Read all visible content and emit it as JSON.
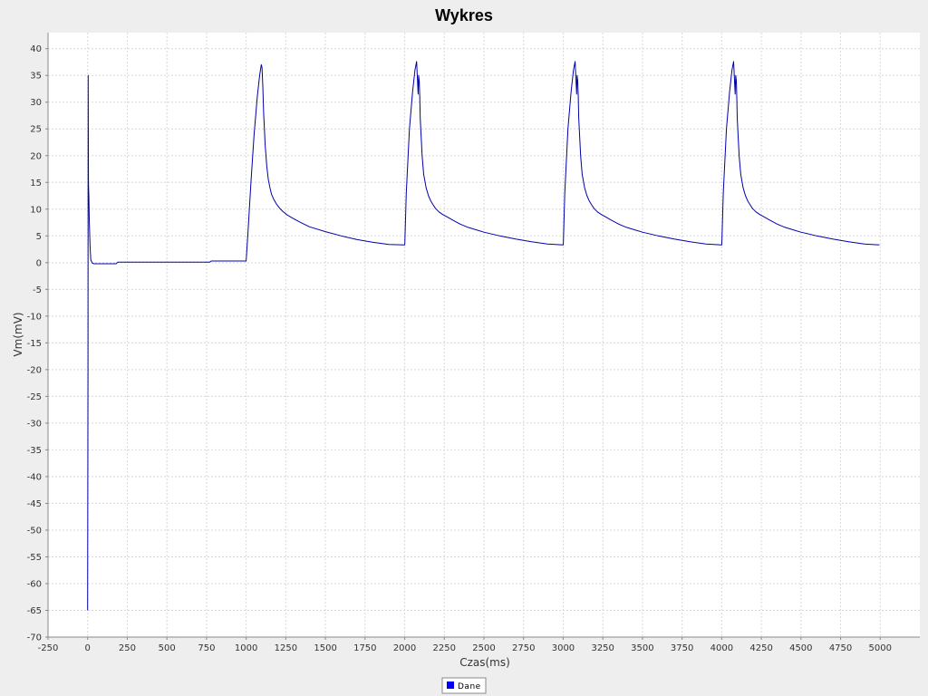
{
  "chart_data": {
    "type": "line",
    "title": "Wykres",
    "xlabel": "Czas(ms)",
    "ylabel": "Vm(mV)",
    "xlim": [
      -250,
      5250
    ],
    "ylim": [
      -70,
      43
    ],
    "xticks": [
      -250,
      0,
      250,
      500,
      750,
      1000,
      1250,
      1500,
      1750,
      2000,
      2250,
      2500,
      2750,
      3000,
      3250,
      3500,
      3750,
      4000,
      4250,
      4500,
      4750,
      5000
    ],
    "yticks": [
      -70,
      -65,
      -60,
      -55,
      -50,
      -45,
      -40,
      -35,
      -30,
      -25,
      -20,
      -15,
      -10,
      -5,
      0,
      5,
      10,
      15,
      20,
      25,
      30,
      35,
      40
    ],
    "grid": true,
    "legend_position": "bottom-center",
    "colors": {
      "line": "#0000aa",
      "legend_swatch": "#0000ff",
      "plot_background": "#ffffff",
      "page_background": "#eeeeee",
      "grid": "#d8d8d8"
    },
    "series": [
      {
        "name": "Dane",
        "x": [
          0,
          2,
          3,
          5,
          8,
          10,
          15,
          20,
          30,
          40,
          60,
          100,
          150,
          180,
          190,
          500,
          770,
          780,
          1000,
          1010,
          1030,
          1050,
          1070,
          1085,
          1095,
          1100,
          1105,
          1110,
          1120,
          1130,
          1140,
          1150,
          1160,
          1175,
          1190,
          1210,
          1230,
          1260,
          1300,
          1350,
          1400,
          1500,
          1600,
          1700,
          1800,
          1900,
          2000,
          2001,
          2010,
          2030,
          2050,
          2065,
          2075,
          2085,
          2088,
          2092,
          2095,
          2098,
          2103,
          2110,
          2120,
          2135,
          2150,
          2165,
          2180,
          2195,
          2215,
          2240,
          2270,
          2300,
          2350,
          2400,
          2500,
          2600,
          2700,
          2800,
          2900,
          3000,
          3001,
          3010,
          3030,
          3050,
          3065,
          3075,
          3085,
          3088,
          3092,
          3095,
          3098,
          3103,
          3110,
          3120,
          3135,
          3150,
          3165,
          3180,
          3195,
          3215,
          3240,
          3270,
          3300,
          3350,
          3400,
          3500,
          3600,
          3700,
          3800,
          3900,
          4000,
          4001,
          4010,
          4030,
          4050,
          4065,
          4075,
          4085,
          4088,
          4092,
          4095,
          4098,
          4103,
          4110,
          4120,
          4135,
          4150,
          4165,
          4180,
          4195,
          4215,
          4240,
          4270,
          4300,
          4350,
          4400,
          4500,
          4600,
          4700,
          4800,
          4900,
          4995
        ],
        "y": [
          -65,
          -20,
          35,
          15,
          12,
          8,
          3,
          0.5,
          -0.1,
          -0.2,
          -0.2,
          -0.2,
          -0.2,
          -0.2,
          0.1,
          0.1,
          0.1,
          0.3,
          0.3,
          5,
          15,
          24,
          31,
          35,
          37,
          36.5,
          33,
          28,
          22,
          18,
          15.5,
          14,
          12.8,
          11.8,
          11,
          10.2,
          9.6,
          8.9,
          8.2,
          7.4,
          6.7,
          5.8,
          5,
          4.3,
          3.8,
          3.4,
          3.3,
          3.5,
          13,
          25,
          32,
          36,
          37.6,
          31.5,
          35,
          34,
          31,
          27,
          24,
          20,
          16.5,
          14,
          12.5,
          11.5,
          10.8,
          10.1,
          9.5,
          9,
          8.5,
          8,
          7.2,
          6.6,
          5.7,
          5,
          4.4,
          3.9,
          3.5,
          3.3,
          3.5,
          13,
          25,
          32,
          36,
          37.6,
          31.5,
          35,
          34,
          31,
          27,
          24,
          20,
          16.5,
          14,
          12.5,
          11.5,
          10.8,
          10.1,
          9.5,
          9,
          8.5,
          8,
          7.2,
          6.6,
          5.7,
          5,
          4.4,
          3.9,
          3.5,
          3.3,
          3.5,
          13,
          25,
          32,
          36,
          37.6,
          31.5,
          35,
          34,
          31,
          27,
          24,
          20,
          16.5,
          14,
          12.5,
          11.5,
          10.8,
          10.1,
          9.5,
          9,
          8.5,
          8,
          7.2,
          6.6,
          5.7,
          5,
          4.4,
          3.9,
          3.5,
          3.3
        ]
      }
    ]
  }
}
